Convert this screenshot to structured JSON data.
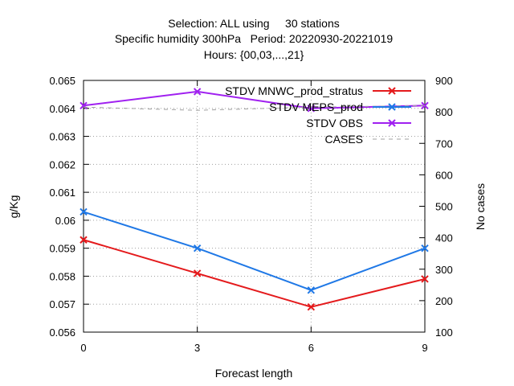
{
  "chart_data": {
    "type": "line",
    "title_lines": [
      "Selection: ALL using     30 stations",
      "Specific humidity 300hPa   Period: 20220930-20221019",
      "Hours: {00,03,...,21}"
    ],
    "xlabel": "Forecast length",
    "ylabel": "g/Kg",
    "y2label": "No cases",
    "x": [
      0,
      3,
      6,
      9
    ],
    "xlim": [
      0,
      9
    ],
    "ylim": [
      0.056,
      0.065
    ],
    "y2lim": [
      100,
      900
    ],
    "xticks": [
      "0",
      "3",
      "6",
      "9"
    ],
    "yticks": [
      "0.056",
      "0.057",
      "0.058",
      "0.059",
      "0.06",
      "0.061",
      "0.062",
      "0.063",
      "0.064",
      "0.065"
    ],
    "y2ticks": [
      "100",
      "200",
      "300",
      "400",
      "500",
      "600",
      "700",
      "800",
      "900"
    ],
    "grid": true,
    "legend_position": "top-right",
    "series": [
      {
        "name": "STDV MNWC_prod_stratus",
        "color": "#e41a1c",
        "axis": "y",
        "values": [
          0.0593,
          0.0581,
          0.0569,
          0.0579
        ]
      },
      {
        "name": "STDV MEPS_prod",
        "color": "#1f78e6",
        "axis": "y",
        "values": [
          0.0603,
          0.059,
          0.0575,
          0.059
        ]
      },
      {
        "name": "STDV OBS",
        "color": "#a020f0",
        "axis": "y",
        "values": [
          0.0641,
          0.0646,
          0.064,
          0.0641
        ]
      },
      {
        "name": "CASES",
        "color": "#a0a0a0",
        "axis": "y2",
        "dashed": true,
        "values": [
          815,
          805,
          815,
          820
        ]
      }
    ]
  }
}
